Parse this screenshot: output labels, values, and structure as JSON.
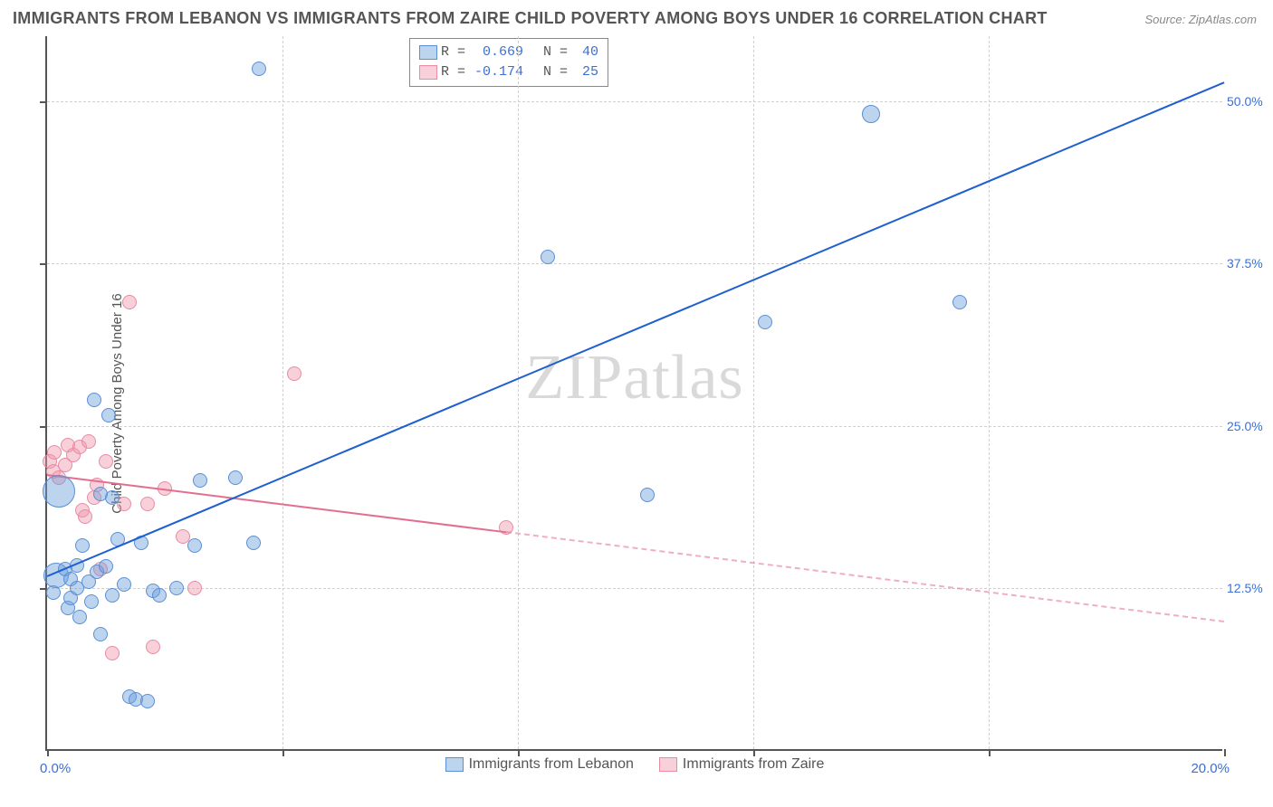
{
  "title": "IMMIGRANTS FROM LEBANON VS IMMIGRANTS FROM ZAIRE CHILD POVERTY AMONG BOYS UNDER 16 CORRELATION CHART",
  "source_prefix": "Source: ",
  "source_name": "ZipAtlas.com",
  "ylabel": "Child Poverty Among Boys Under 16",
  "watermark": "ZIPatlas",
  "chart": {
    "type": "scatter",
    "background_color": "#ffffff",
    "grid_color": "#d0d0d0",
    "axis_color": "#555555",
    "xlim": [
      0,
      20
    ],
    "ylim": [
      0,
      55
    ],
    "xtick_label_left": "0.0%",
    "xtick_label_right": "20.0%",
    "yticks": [
      {
        "v": 12.5,
        "label": "12.5%"
      },
      {
        "v": 25.0,
        "label": "25.0%"
      },
      {
        "v": 37.5,
        "label": "37.5%"
      },
      {
        "v": 50.0,
        "label": "50.0%"
      }
    ],
    "x_grid_at": [
      0,
      4,
      8,
      12,
      16,
      20
    ],
    "tick_label_color": "#3a6fd8"
  },
  "series": {
    "lebanon": {
      "label": "Immigrants from Lebanon",
      "color_fill": "rgba(108,160,220,0.45)",
      "color_stroke": "#5a8fd6",
      "marker_radius": 8,
      "trend": {
        "R_label": "R =",
        "R": "0.669",
        "N_label": "N =",
        "N": "40",
        "line_color": "#1f5fd0",
        "line_width": 2.5,
        "start": {
          "x": 0,
          "y": 13.5
        },
        "end": {
          "x": 20,
          "y": 51.5
        },
        "solid_until_x": 20
      },
      "points": [
        {
          "x": 0.1,
          "y": 12.2
        },
        {
          "x": 0.15,
          "y": 13.5,
          "r": 14
        },
        {
          "x": 0.2,
          "y": 20.0,
          "r": 18
        },
        {
          "x": 0.3,
          "y": 14.0
        },
        {
          "x": 0.35,
          "y": 11.0
        },
        {
          "x": 0.4,
          "y": 11.8
        },
        {
          "x": 0.4,
          "y": 13.2
        },
        {
          "x": 0.5,
          "y": 12.5
        },
        {
          "x": 0.5,
          "y": 14.3
        },
        {
          "x": 0.55,
          "y": 10.3
        },
        {
          "x": 0.6,
          "y": 15.8
        },
        {
          "x": 0.7,
          "y": 13.0
        },
        {
          "x": 0.75,
          "y": 11.5
        },
        {
          "x": 0.8,
          "y": 27.0
        },
        {
          "x": 0.85,
          "y": 13.8
        },
        {
          "x": 0.9,
          "y": 19.8
        },
        {
          "x": 1.0,
          "y": 14.2
        },
        {
          "x": 1.05,
          "y": 25.8
        },
        {
          "x": 1.1,
          "y": 12.0
        },
        {
          "x": 1.2,
          "y": 16.3
        },
        {
          "x": 1.3,
          "y": 12.8
        },
        {
          "x": 1.4,
          "y": 4.2
        },
        {
          "x": 1.5,
          "y": 4.0
        },
        {
          "x": 1.6,
          "y": 16.0
        },
        {
          "x": 1.7,
          "y": 3.8
        },
        {
          "x": 1.8,
          "y": 12.3
        },
        {
          "x": 1.9,
          "y": 12.0
        },
        {
          "x": 2.2,
          "y": 12.5
        },
        {
          "x": 2.5,
          "y": 15.8
        },
        {
          "x": 2.6,
          "y": 20.8
        },
        {
          "x": 3.2,
          "y": 21.0
        },
        {
          "x": 3.5,
          "y": 16.0
        },
        {
          "x": 3.6,
          "y": 52.5
        },
        {
          "x": 8.5,
          "y": 38.0
        },
        {
          "x": 10.2,
          "y": 19.7
        },
        {
          "x": 12.2,
          "y": 33.0
        },
        {
          "x": 14.0,
          "y": 49.0,
          "r": 10
        },
        {
          "x": 15.5,
          "y": 34.5
        },
        {
          "x": 0.9,
          "y": 9.0
        },
        {
          "x": 1.1,
          "y": 19.5
        }
      ]
    },
    "zaire": {
      "label": "Immigrants from Zaire",
      "color_fill": "rgba(240,150,170,0.45)",
      "color_stroke": "#e88ba3",
      "marker_radius": 8,
      "trend": {
        "R_label": "R =",
        "R": "-0.174",
        "N_label": "N =",
        "N": "25",
        "line_color": "#e26f8f",
        "line_width": 2,
        "start": {
          "x": 0,
          "y": 21.3
        },
        "end": {
          "x": 20,
          "y": 10.0
        },
        "solid_until_x": 7.8
      },
      "points": [
        {
          "x": 0.05,
          "y": 22.3
        },
        {
          "x": 0.1,
          "y": 21.5
        },
        {
          "x": 0.12,
          "y": 23.0
        },
        {
          "x": 0.2,
          "y": 21.0
        },
        {
          "x": 0.3,
          "y": 22.0
        },
        {
          "x": 0.35,
          "y": 23.5
        },
        {
          "x": 0.45,
          "y": 22.8
        },
        {
          "x": 0.55,
          "y": 23.4
        },
        {
          "x": 0.6,
          "y": 18.5
        },
        {
          "x": 0.65,
          "y": 18.0
        },
        {
          "x": 0.7,
          "y": 23.8
        },
        {
          "x": 0.8,
          "y": 19.5
        },
        {
          "x": 0.85,
          "y": 20.5
        },
        {
          "x": 0.9,
          "y": 14.0
        },
        {
          "x": 1.0,
          "y": 22.3
        },
        {
          "x": 1.1,
          "y": 7.5
        },
        {
          "x": 1.3,
          "y": 19.0
        },
        {
          "x": 1.4,
          "y": 34.5
        },
        {
          "x": 1.7,
          "y": 19.0
        },
        {
          "x": 1.8,
          "y": 8.0
        },
        {
          "x": 2.0,
          "y": 20.2
        },
        {
          "x": 2.3,
          "y": 16.5
        },
        {
          "x": 2.5,
          "y": 12.5
        },
        {
          "x": 4.2,
          "y": 29.0
        },
        {
          "x": 7.8,
          "y": 17.2
        }
      ]
    }
  },
  "legend_top": {
    "value_color": "#3a6fd8",
    "text_color": "#555555"
  }
}
